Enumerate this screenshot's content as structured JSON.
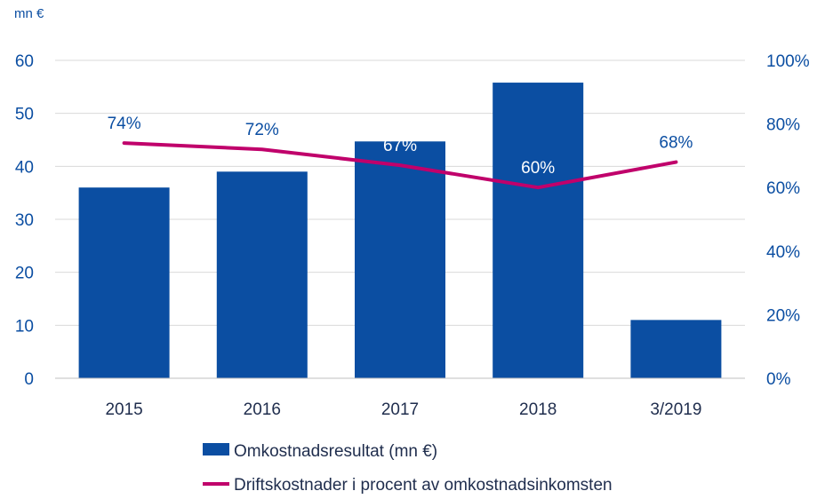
{
  "chart_data": {
    "type": "bar",
    "categories": [
      "2015",
      "2016",
      "2017",
      "2018",
      "3/2019"
    ],
    "left_axis_unit": "mn €",
    "series": [
      {
        "name": "Omkostnadsresultat (mn €)",
        "type": "bar",
        "axis": "left",
        "values": [
          36,
          39,
          44.7,
          55.8,
          11
        ],
        "color": "#0b4ea2"
      },
      {
        "name": "Driftskostnader i procent av omkostnadsinkomsten",
        "type": "line",
        "axis": "right",
        "values": [
          74,
          72,
          67,
          60,
          68
        ],
        "labels": [
          "74%",
          "72%",
          "67%",
          "60%",
          "68%"
        ],
        "color": "#c0006b"
      }
    ],
    "ylim_left": [
      0,
      60
    ],
    "yticks_left": [
      "0",
      "10",
      "20",
      "30",
      "40",
      "50",
      "60"
    ],
    "ylim_right": [
      0,
      100
    ],
    "yticks_right": [
      "0%",
      "20%",
      "40%",
      "60%",
      "80%",
      "100%"
    ],
    "grid": true,
    "legend_position": "bottom"
  }
}
